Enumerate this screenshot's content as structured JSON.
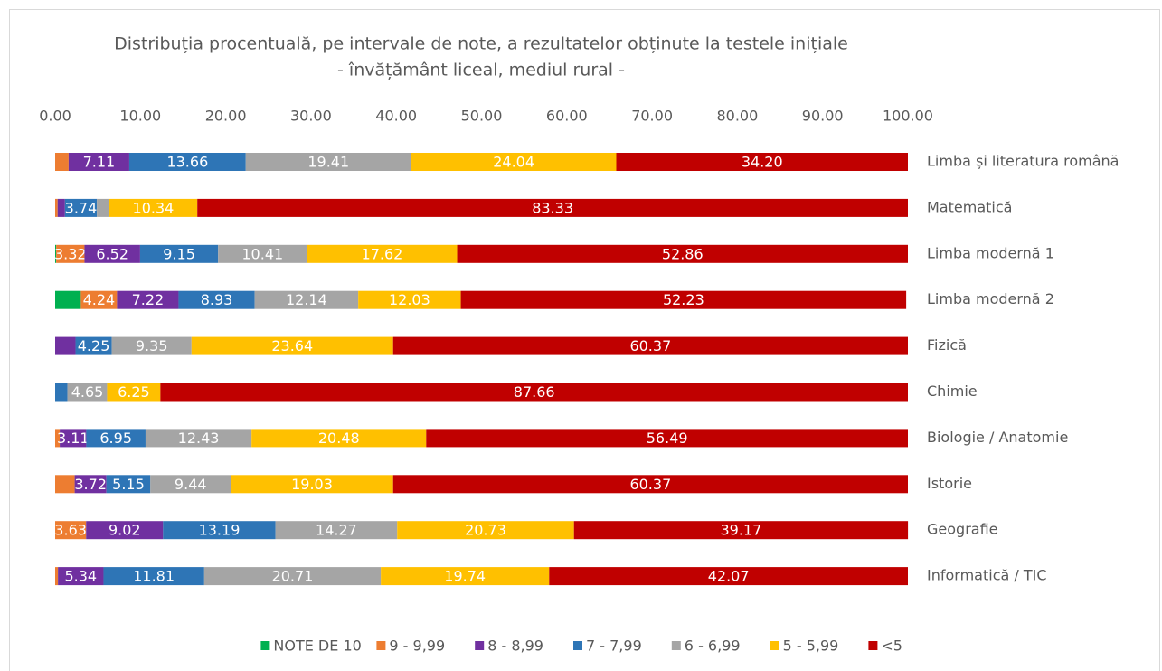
{
  "chart_data": {
    "type": "stacked-bar-horizontal",
    "title": "Distribuția procentuală, pe intervale de note, a rezultatelor obținute la testele inițiale",
    "subtitle": "- învățământ liceal, mediul rural -",
    "categories": [
      "Limba și literatura română",
      "Matematică",
      "Limba modernă 1",
      "Limba modernă 2",
      "Fizică",
      "Chimie",
      "Biologie / Anatomie",
      "Istorie",
      "Geografie",
      "Informatică / TIC"
    ],
    "xlim": [
      0,
      100
    ],
    "xticks": [
      {
        "value": 0,
        "label": "0.00"
      },
      {
        "value": 10,
        "label": "10.00"
      },
      {
        "value": 20,
        "label": "20.00"
      },
      {
        "value": 30,
        "label": "30.00"
      },
      {
        "value": 40,
        "label": "40.00"
      },
      {
        "value": 50,
        "label": "50.00"
      },
      {
        "value": 60,
        "label": "60.00"
      },
      {
        "value": 70,
        "label": "70.00"
      },
      {
        "value": 80,
        "label": "80.00"
      },
      {
        "value": 90,
        "label": "90.00"
      },
      {
        "value": 100,
        "label": "100.00"
      }
    ],
    "legend": "bottom",
    "series": [
      {
        "name": "NOTE DE 10",
        "color": "#00b050",
        "values": [
          0,
          0,
          0.12,
          3.01,
          0,
          0,
          0,
          0,
          0,
          0
        ],
        "value_labels": [
          null,
          null,
          null,
          null,
          null,
          null,
          null,
          null,
          null,
          null
        ]
      },
      {
        "name": "9 - 9,99",
        "color": "#ed7d31",
        "values": [
          1.58,
          0.29,
          3.32,
          4.24,
          0,
          0,
          0.54,
          2.29,
          3.63,
          0.33
        ],
        "value_labels": [
          null,
          null,
          "3.32",
          "4.24",
          null,
          null,
          null,
          null,
          "3.63",
          null
        ]
      },
      {
        "name": "8 - 8,99",
        "color": "#7030a0",
        "values": [
          7.11,
          0.86,
          6.52,
          7.22,
          2.39,
          0,
          3.11,
          3.72,
          9.02,
          5.34
        ],
        "value_labels": [
          "7.11",
          null,
          "6.52",
          "7.22",
          null,
          null,
          "3.11",
          "3.72",
          "9.02",
          "5.34"
        ]
      },
      {
        "name": "7 - 7,99",
        "color": "#2e75b6",
        "values": [
          13.66,
          3.74,
          9.15,
          8.93,
          4.25,
          1.44,
          6.95,
          5.15,
          13.19,
          11.81
        ],
        "value_labels": [
          "13.66",
          "3.74",
          "9.15",
          "8.93",
          "4.25",
          null,
          "6.95",
          "5.15",
          "13.19",
          "11.81"
        ]
      },
      {
        "name": "6 - 6,99",
        "color": "#a5a5a5",
        "values": [
          19.41,
          1.44,
          10.41,
          12.14,
          9.35,
          4.65,
          12.43,
          9.44,
          14.27,
          20.71
        ],
        "value_labels": [
          "19.41",
          null,
          "10.41",
          "12.14",
          "9.35",
          "4.65",
          "12.43",
          "9.44",
          "14.27",
          "20.71"
        ]
      },
      {
        "name": "5 - 5,99",
        "color": "#ffc000",
        "values": [
          24.04,
          10.34,
          17.62,
          12.03,
          23.64,
          6.25,
          20.48,
          19.03,
          20.73,
          19.74
        ],
        "value_labels": [
          "24.04",
          "10.34",
          "17.62",
          "12.03",
          "23.64",
          "6.25",
          "20.48",
          "19.03",
          "20.73",
          "19.74"
        ]
      },
      {
        "name": "<5",
        "color": "#c00000",
        "values": [
          34.2,
          83.33,
          52.86,
          52.23,
          60.37,
          87.66,
          56.49,
          60.37,
          39.17,
          42.07
        ],
        "value_labels": [
          "34.20",
          "83.33",
          "52.86",
          "52.23",
          "60.37",
          "87.66",
          "56.49",
          "60.37",
          "39.17",
          "42.07"
        ]
      }
    ]
  }
}
